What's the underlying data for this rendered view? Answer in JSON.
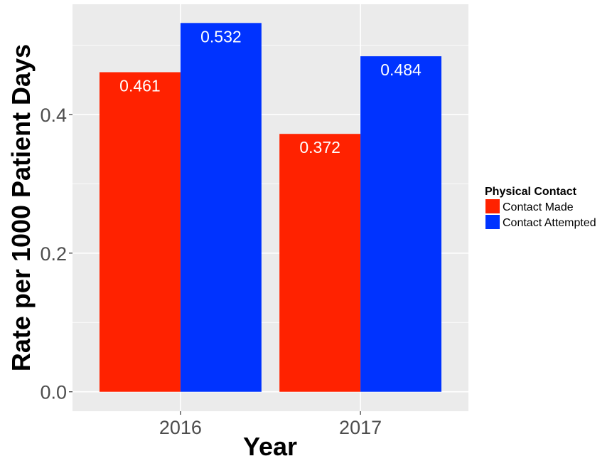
{
  "chart_data": {
    "type": "bar",
    "title": "",
    "xlabel": "Year",
    "ylabel": "Rate per 1000 Patient Days",
    "categories": [
      "2016",
      "2017"
    ],
    "series": [
      {
        "name": "Contact Made",
        "color": "#ff2200",
        "values": [
          0.461,
          0.372
        ],
        "labels": [
          "0.461",
          "0.372"
        ]
      },
      {
        "name": "Contact Attempted",
        "color": "#0033ff",
        "values": [
          0.532,
          0.484
        ],
        "labels": [
          "0.532",
          "0.484"
        ]
      }
    ],
    "ylim": [
      -0.028,
      0.559
    ],
    "yticks": [
      0.0,
      0.2,
      0.4
    ],
    "ytick_labels": [
      "0.0",
      "0.2",
      "0.4"
    ],
    "legend": {
      "title": "Physical Contact",
      "position": "right"
    },
    "panel_color": "#ebebeb",
    "grid": true
  }
}
